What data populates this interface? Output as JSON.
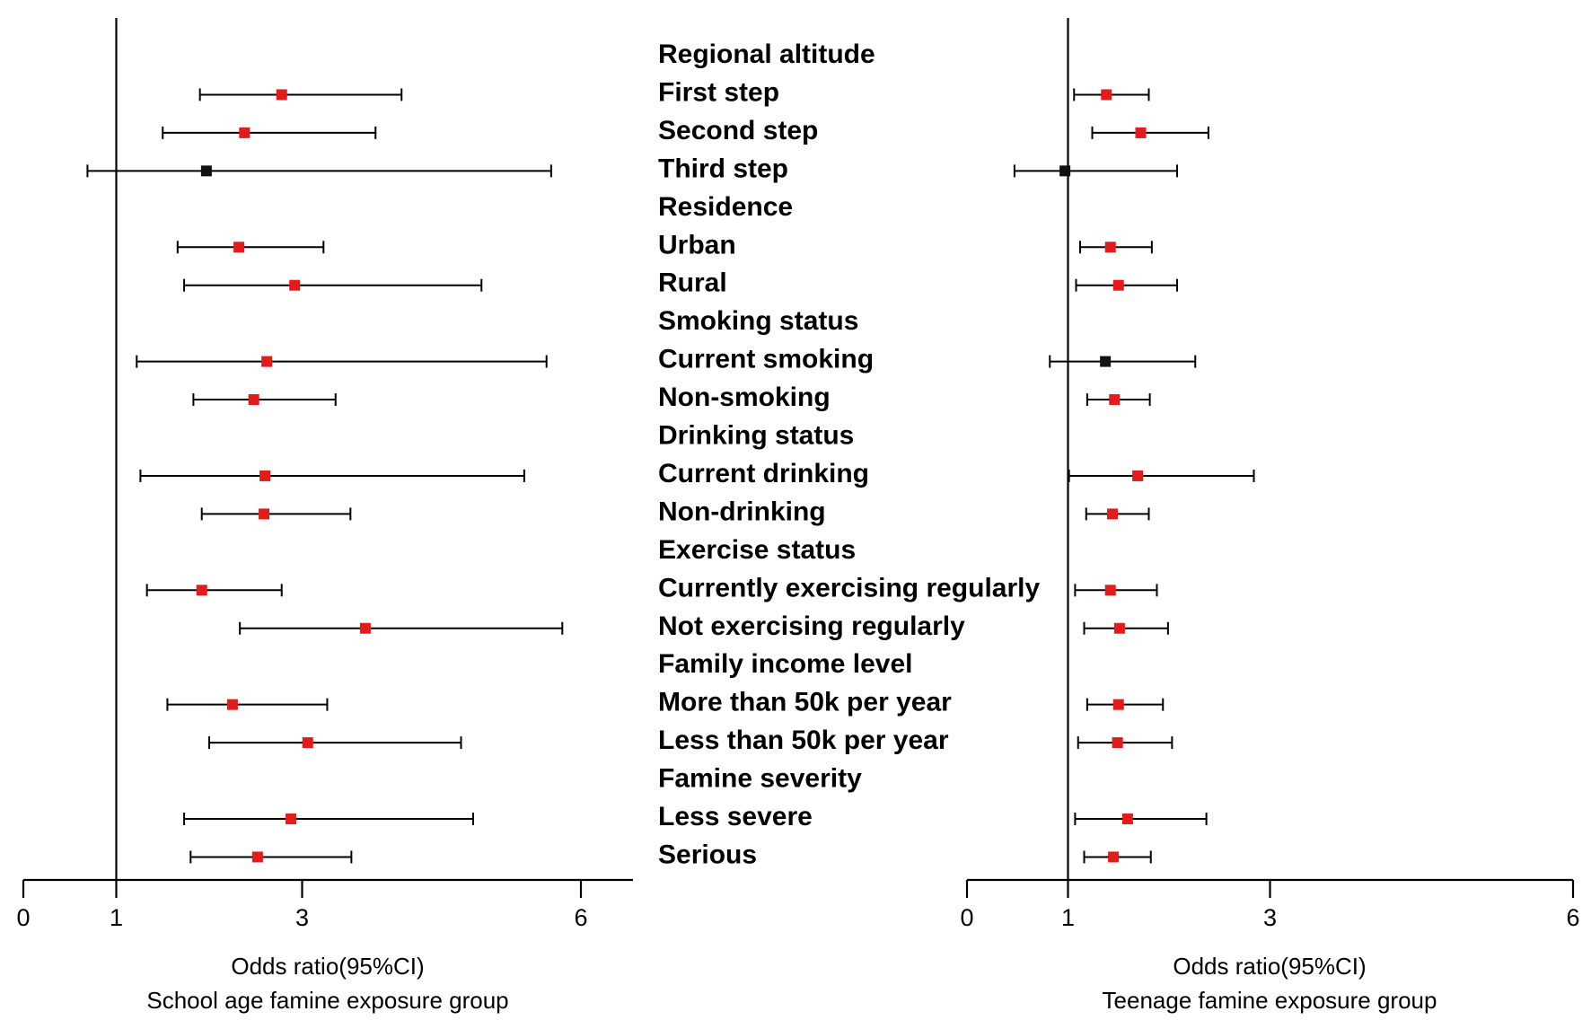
{
  "chart_data": {
    "type": "forest",
    "row_labels": [
      "Regional altitude",
      "First step",
      "Second step",
      "Third step",
      "Residence",
      "Urban",
      "Rural",
      "Smoking status",
      "Current smoking",
      "Non-smoking",
      "Drinking status",
      "Current drinking",
      "Non-drinking",
      "Exercise status",
      "Currently exercising regularly",
      "Not exercising regularly",
      "Family income level",
      "More than 50k per year",
      "Less than 50k per year",
      "Famine severity",
      "Less severe",
      "Serious"
    ],
    "panels": [
      {
        "name": "School age famine exposure group",
        "xlabel": "Odds ratio(95%CI)",
        "xlim": [
          0,
          6.55
        ],
        "ticks": [
          0,
          1,
          3,
          6
        ],
        "tick_labels": [
          "0",
          "1",
          "3",
          "6"
        ],
        "reference_line": 1,
        "estimates": [
          null,
          {
            "or": 2.78,
            "lo": 1.9,
            "hi": 4.07,
            "significant": true
          },
          {
            "or": 2.38,
            "lo": 1.5,
            "hi": 3.79,
            "significant": true
          },
          {
            "or": 1.97,
            "lo": 0.69,
            "hi": 5.68,
            "significant": false
          },
          null,
          {
            "or": 2.32,
            "lo": 1.66,
            "hi": 3.23,
            "significant": true
          },
          {
            "or": 2.92,
            "lo": 1.73,
            "hi": 4.93,
            "significant": true
          },
          null,
          {
            "or": 2.62,
            "lo": 1.22,
            "hi": 5.63,
            "significant": true
          },
          {
            "or": 2.48,
            "lo": 1.83,
            "hi": 3.36,
            "significant": true
          },
          null,
          {
            "or": 2.6,
            "lo": 1.26,
            "hi": 5.39,
            "significant": true
          },
          {
            "or": 2.59,
            "lo": 1.92,
            "hi": 3.52,
            "significant": true
          },
          null,
          {
            "or": 1.92,
            "lo": 1.33,
            "hi": 2.78,
            "significant": true
          },
          {
            "or": 3.68,
            "lo": 2.33,
            "hi": 5.8,
            "significant": true
          },
          null,
          {
            "or": 2.25,
            "lo": 1.55,
            "hi": 3.27,
            "significant": true
          },
          {
            "or": 3.06,
            "lo": 2.0,
            "hi": 4.71,
            "significant": true
          },
          null,
          {
            "or": 2.88,
            "lo": 1.73,
            "hi": 4.84,
            "significant": true
          },
          {
            "or": 2.52,
            "lo": 1.8,
            "hi": 3.53,
            "significant": true
          }
        ]
      },
      {
        "name": "Teenage famine exposure group",
        "xlabel": "Odds ratio(95%CI)",
        "xlim": [
          0,
          6
        ],
        "ticks": [
          0,
          1,
          3,
          6
        ],
        "tick_labels": [
          "0",
          "1",
          "3",
          "6"
        ],
        "reference_line": 1,
        "estimates": [
          null,
          {
            "or": 1.38,
            "lo": 1.06,
            "hi": 1.8,
            "significant": true
          },
          {
            "or": 1.72,
            "lo": 1.24,
            "hi": 2.39,
            "significant": true
          },
          {
            "or": 0.97,
            "lo": 0.47,
            "hi": 2.08,
            "significant": false
          },
          null,
          {
            "or": 1.42,
            "lo": 1.12,
            "hi": 1.83,
            "significant": true
          },
          {
            "or": 1.5,
            "lo": 1.08,
            "hi": 2.08,
            "significant": true
          },
          null,
          {
            "or": 1.37,
            "lo": 0.82,
            "hi": 2.26,
            "significant": false
          },
          {
            "or": 1.46,
            "lo": 1.19,
            "hi": 1.81,
            "significant": true
          },
          null,
          {
            "or": 1.69,
            "lo": 1.01,
            "hi": 2.84,
            "significant": true
          },
          {
            "or": 1.44,
            "lo": 1.18,
            "hi": 1.8,
            "significant": true
          },
          null,
          {
            "or": 1.42,
            "lo": 1.07,
            "hi": 1.88,
            "significant": true
          },
          {
            "or": 1.51,
            "lo": 1.16,
            "hi": 1.99,
            "significant": true
          },
          null,
          {
            "or": 1.5,
            "lo": 1.19,
            "hi": 1.94,
            "significant": true
          },
          {
            "or": 1.49,
            "lo": 1.1,
            "hi": 2.03,
            "significant": true
          },
          null,
          {
            "or": 1.59,
            "lo": 1.07,
            "hi": 2.37,
            "significant": true
          },
          {
            "or": 1.45,
            "lo": 1.16,
            "hi": 1.82,
            "significant": true
          }
        ]
      }
    ]
  },
  "colors": {
    "significant": "#e31b1b",
    "non_significant": "#111111",
    "axis": "#000000"
  }
}
